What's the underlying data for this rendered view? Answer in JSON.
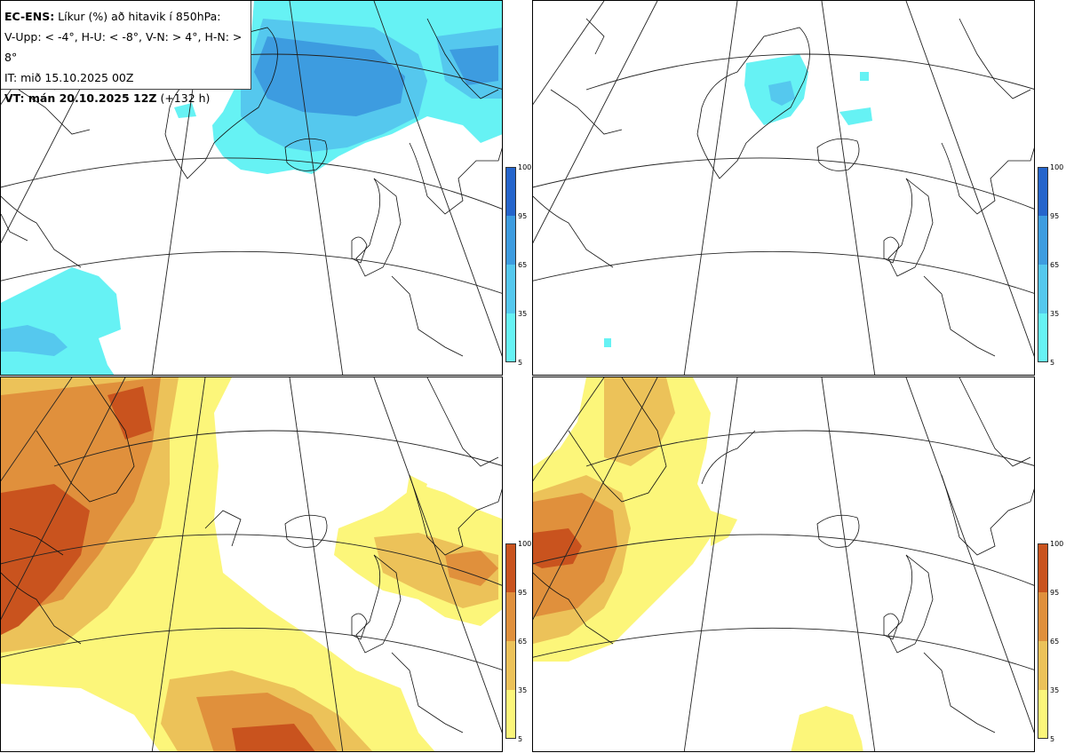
{
  "legend": {
    "line1_bold": "EC-ENS:",
    "line1_rest": " Líkur (%) að hitavik í 850hPa:",
    "line2": "V-Upp: < -4°, H-U: < -8°, V-N: > 4°, H-N: > 8°",
    "line3": "IT: mið 15.10.2025 00Z",
    "line4_bold": "VT: mán 20.10.2025 12Z",
    "line4_rest": " (+132 h)"
  },
  "colorbar_ticks": [
    "100",
    "95",
    "65",
    "35",
    "5"
  ],
  "colors": {
    "cold_5_35": "#66f2f4",
    "cold_35_65": "#55c8ee",
    "cold_65_95": "#3d9ce0",
    "cold_95_100": "#2565cc",
    "warm_5_35": "#fcf67a",
    "warm_35_65": "#ecc259",
    "warm_65_95": "#e0903c",
    "warm_95_100": "#c9531e"
  },
  "panels": {
    "top_left": "V-Upp",
    "top_right": "H-U",
    "bottom_left": "V-N",
    "bottom_right": "H-N"
  }
}
